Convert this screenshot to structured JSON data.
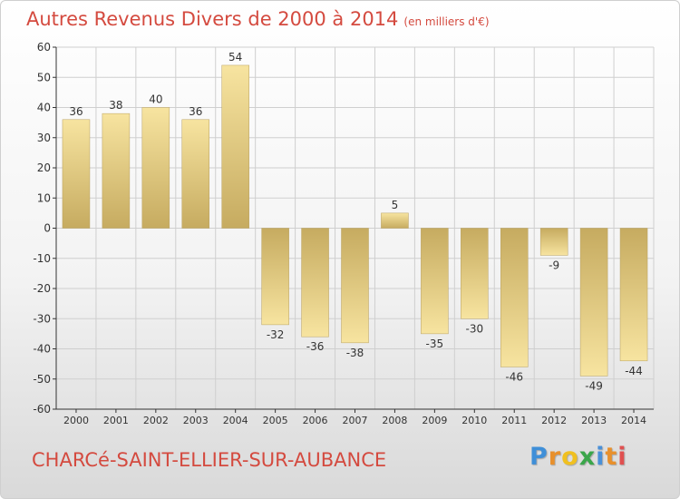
{
  "header": {
    "title": "Autres Revenus Divers de 2000 à 2014",
    "unit": "(en milliers d'€)"
  },
  "footer": {
    "commune": "CHARCé-SAINT-ELLIER-SUR-AUBANCE",
    "logo_letters": [
      "P",
      "r",
      "o",
      "x",
      "i",
      "t",
      "i"
    ],
    "logo_colors": [
      "#3f8fd8",
      "#e8902c",
      "#f0c020",
      "#3aa64a",
      "#4a90d8",
      "#e8902c",
      "#e05050"
    ]
  },
  "chart_data": {
    "type": "bar",
    "categories": [
      "2000",
      "2001",
      "2002",
      "2003",
      "2004",
      "2005",
      "2006",
      "2007",
      "2008",
      "2009",
      "2010",
      "2011",
      "2012",
      "2013",
      "2014"
    ],
    "values": [
      36,
      38,
      40,
      36,
      54,
      -32,
      -36,
      -38,
      5,
      -35,
      -30,
      -46,
      -9,
      -49,
      -44
    ],
    "ylim": [
      -60,
      60
    ],
    "yticks": [
      -60,
      -50,
      -40,
      -30,
      -20,
      -10,
      0,
      10,
      20,
      30,
      40,
      50,
      60
    ],
    "grid": true,
    "colors": {
      "bar_light": "#f5e09a",
      "bar_dark": "#c8ae62",
      "grid": "#cfcfcf",
      "axis": "#333333"
    }
  }
}
